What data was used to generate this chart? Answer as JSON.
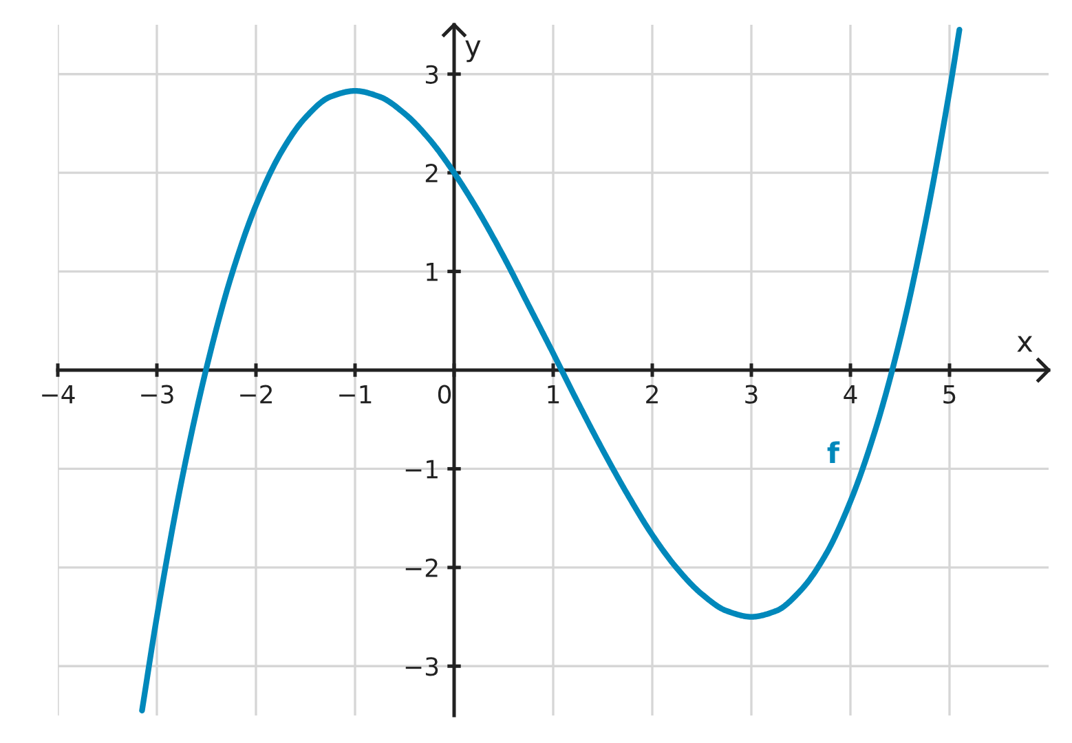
{
  "chart_data": {
    "type": "line",
    "xlabel": "x",
    "ylabel": "y",
    "xlim": [
      -4,
      6
    ],
    "ylim": [
      -3.5,
      3.5
    ],
    "xticks": [
      {
        "value": -4,
        "label": "−4"
      },
      {
        "value": -3,
        "label": "−3"
      },
      {
        "value": -2,
        "label": "−2"
      },
      {
        "value": -1,
        "label": "−1"
      },
      0,
      1,
      2,
      3,
      4,
      5
    ],
    "yticks": [
      {
        "value": -3,
        "label": "−3"
      },
      {
        "value": -2,
        "label": "−2"
      },
      {
        "value": -1,
        "label": "−1"
      },
      1,
      2,
      3
    ],
    "grid": true,
    "legend": false,
    "marker": "none",
    "line_style": "solid",
    "series": [
      {
        "name": "f",
        "color": "#0088bb",
        "x": [
          -3.15,
          -3,
          -2.75,
          -2.5,
          -2.25,
          -2,
          -1.75,
          -1.5,
          -1.25,
          -1,
          -0.75,
          -0.5,
          -0.25,
          0,
          0.25,
          0.5,
          0.75,
          1,
          1.25,
          1.5,
          1.75,
          2,
          2.25,
          2.5,
          2.75,
          3,
          3.25,
          3.5,
          3.75,
          4,
          4.25,
          4.5,
          4.75,
          5,
          5.1
        ],
        "values": [
          -3.45,
          -2.5,
          -1.12,
          0.02,
          0.95,
          1.67,
          2.2,
          2.56,
          2.77,
          2.83,
          2.77,
          2.6,
          2.34,
          2,
          1.6,
          1.15,
          0.66,
          0.17,
          -0.33,
          -0.81,
          -1.26,
          -1.67,
          -2.01,
          -2.27,
          -2.44,
          -2.5,
          -2.44,
          -2.23,
          -1.87,
          -1.33,
          -0.61,
          0.31,
          1.46,
          2.83,
          3.45
        ]
      }
    ]
  }
}
